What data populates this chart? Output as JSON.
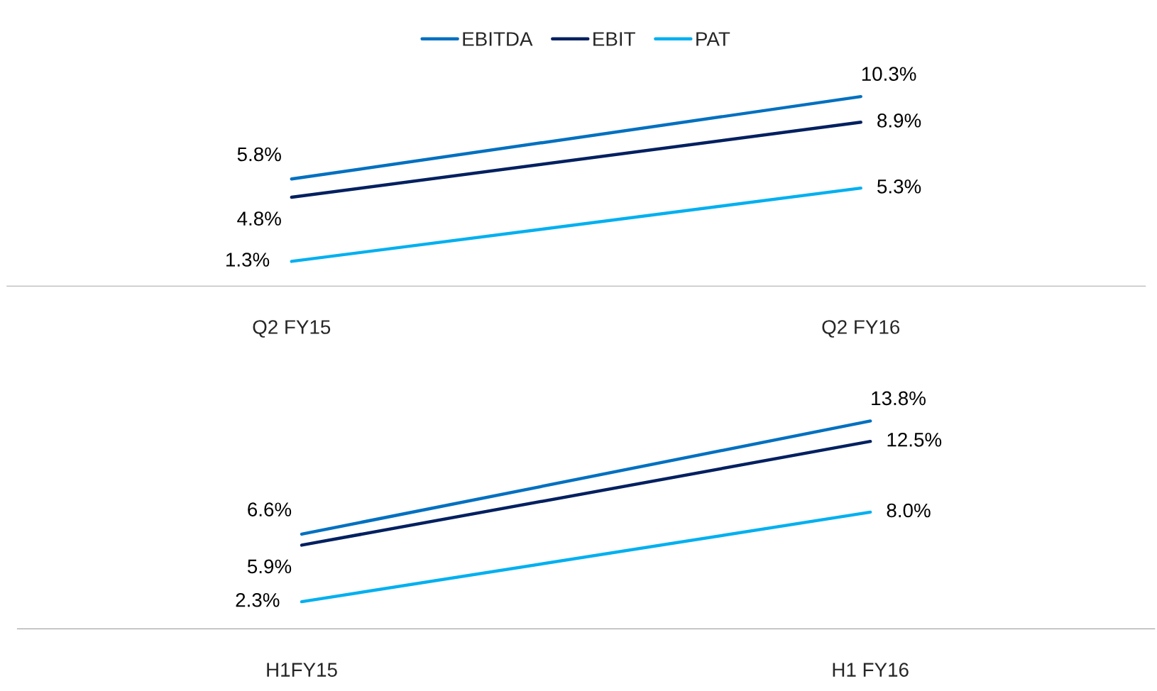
{
  "chart_data": [
    {
      "type": "line",
      "categories": [
        "Q2 FY15",
        "Q2 FY16"
      ],
      "data_labels": true,
      "legend": "top",
      "grid": false,
      "tick_labels": "x",
      "series": [
        {
          "name": "EBITDA",
          "color": "#0070c0",
          "values": [
            5.8,
            10.3
          ],
          "value_labels": [
            "5.8%",
            "10.3%"
          ]
        },
        {
          "name": "EBIT",
          "color": "#002060",
          "values": [
            4.8,
            8.9
          ],
          "value_labels": [
            "4.8%",
            "8.9%"
          ]
        },
        {
          "name": "PAT",
          "color": "#00b0f0",
          "values": [
            1.3,
            5.3
          ],
          "value_labels": [
            "1.3%",
            "5.3%"
          ]
        }
      ]
    },
    {
      "type": "line",
      "categories": [
        "H1FY15",
        "H1 FY16"
      ],
      "data_labels": true,
      "legend": false,
      "grid": false,
      "tick_labels": "x",
      "series": [
        {
          "color": "#0070c0",
          "values": [
            6.6,
            13.8
          ],
          "value_labels": [
            "6.6%",
            "13.8%"
          ]
        },
        {
          "color": "#002060",
          "values": [
            5.9,
            12.5
          ],
          "value_labels": [
            "5.9%",
            "12.5%"
          ]
        },
        {
          "color": "#00b0f0",
          "values": [
            2.3,
            8.0
          ],
          "value_labels": [
            "2.3%",
            "8.0%"
          ]
        }
      ]
    }
  ]
}
